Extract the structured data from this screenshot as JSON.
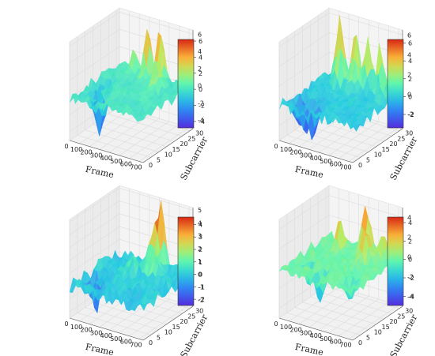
{
  "chart_data": [
    {
      "type": "surface3d",
      "x_label": "Frame",
      "y_label": "Subcarrier",
      "x_ticks": [
        "0",
        "100",
        "200",
        "300",
        "400",
        "500",
        "600",
        "700"
      ],
      "y_ticks": [
        "0",
        "5",
        "10",
        "15",
        "20",
        "25",
        "30"
      ],
      "z_ticks": [
        "-4",
        "-2",
        "0",
        "2",
        "4",
        "6"
      ],
      "colorbar_ticks": [
        "-4",
        "-2",
        "0",
        "2",
        "4",
        "6"
      ],
      "zlim": [
        -5,
        6.5
      ],
      "clim": [
        -4.8,
        6.2
      ],
      "peaks": [
        {
          "frame": 300,
          "subcarrier": 28,
          "value": 6.0
        },
        {
          "frame": 420,
          "subcarrier": 28,
          "value": 6.0
        },
        {
          "frame": 480,
          "subcarrier": 22,
          "value": 3.5
        },
        {
          "frame": 170,
          "subcarrier": 28,
          "value": 3.0
        },
        {
          "frame": 210,
          "subcarrier": 5,
          "value": -4.8
        },
        {
          "frame": 110,
          "subcarrier": 8,
          "value": -2.5
        },
        {
          "frame": 90,
          "subcarrier": 15,
          "value": -2.0
        }
      ]
    },
    {
      "type": "surface3d",
      "x_label": "Frame",
      "y_label": "Subcarrier",
      "x_ticks": [
        "0",
        "100",
        "200",
        "300",
        "400",
        "500",
        "600",
        "700"
      ],
      "y_ticks": [
        "0",
        "5",
        "10",
        "15",
        "20",
        "25",
        "30"
      ],
      "z_ticks": [
        "-2",
        "0",
        "2",
        "4",
        "6"
      ],
      "colorbar_ticks": [
        "-2",
        "0",
        "2",
        "4",
        "6"
      ],
      "zlim": [
        -3.5,
        6.5
      ],
      "clim": [
        -3.5,
        6.4
      ],
      "peaks": [
        {
          "frame": 130,
          "subcarrier": 28,
          "value": 6.0
        },
        {
          "frame": 280,
          "subcarrier": 28,
          "value": 5.5
        },
        {
          "frame": 400,
          "subcarrier": 28,
          "value": 5.2
        },
        {
          "frame": 520,
          "subcarrier": 28,
          "value": 4.5
        },
        {
          "frame": 200,
          "subcarrier": 24,
          "value": 4.0
        },
        {
          "frame": 340,
          "subcarrier": 24,
          "value": 3.5
        },
        {
          "frame": 620,
          "subcarrier": 24,
          "value": 3.0
        },
        {
          "frame": 60,
          "subcarrier": 8,
          "value": -3.3
        },
        {
          "frame": 160,
          "subcarrier": 6,
          "value": -2.8
        },
        {
          "frame": 240,
          "subcarrier": 5,
          "value": -3.0
        }
      ]
    },
    {
      "type": "surface3d",
      "x_label": "Frame",
      "y_label": "Subcarrier",
      "x_ticks": [
        "0",
        "100",
        "200",
        "300",
        "400",
        "500",
        "600",
        "700"
      ],
      "y_ticks": [
        "0",
        "5",
        "10",
        "15",
        "20",
        "25",
        "30"
      ],
      "z_ticks": [
        "-2",
        "-1",
        "0",
        "1",
        "2",
        "3",
        "4",
        "5"
      ],
      "colorbar_ticks": [
        "-2",
        "-1",
        "0",
        "1",
        "2",
        "3",
        "4"
      ],
      "zlim": [
        -2.5,
        5.2
      ],
      "clim": [
        -2.5,
        4.6
      ],
      "peaks": [
        {
          "frame": 430,
          "subcarrier": 28,
          "value": 5.0
        },
        {
          "frame": 380,
          "subcarrier": 25,
          "value": 3.0
        },
        {
          "frame": 470,
          "subcarrier": 22,
          "value": 2.5
        },
        {
          "frame": 280,
          "subcarrier": 20,
          "value": 1.5
        },
        {
          "frame": 150,
          "subcarrier": 6,
          "value": -2.0
        },
        {
          "frame": 70,
          "subcarrier": 10,
          "value": -1.5
        }
      ]
    },
    {
      "type": "surface3d",
      "x_label": "Frame",
      "y_label": "Subcarrier",
      "x_ticks": [
        "0",
        "100",
        "200",
        "300",
        "400",
        "500",
        "600",
        "700"
      ],
      "y_ticks": [
        "0",
        "5",
        "10",
        "15",
        "20",
        "25",
        "30"
      ],
      "z_ticks": [
        "-4",
        "-2",
        "0",
        "2",
        "4"
      ],
      "colorbar_ticks": [
        "-4",
        "-2",
        "0",
        "2",
        "4"
      ],
      "zlim": [
        -5,
        5
      ],
      "clim": [
        -5,
        4.6
      ],
      "peaks": [
        {
          "frame": 380,
          "subcarrier": 28,
          "value": 4.5
        },
        {
          "frame": 200,
          "subcarrier": 24,
          "value": 3.0
        },
        {
          "frame": 470,
          "subcarrier": 22,
          "value": 3.2
        },
        {
          "frame": 560,
          "subcarrier": 26,
          "value": 2.5
        },
        {
          "frame": 320,
          "subcarrier": 5,
          "value": -3.5
        },
        {
          "frame": 150,
          "subcarrier": 8,
          "value": -2.0
        },
        {
          "frame": 600,
          "subcarrier": 6,
          "value": -1.8
        }
      ]
    }
  ]
}
